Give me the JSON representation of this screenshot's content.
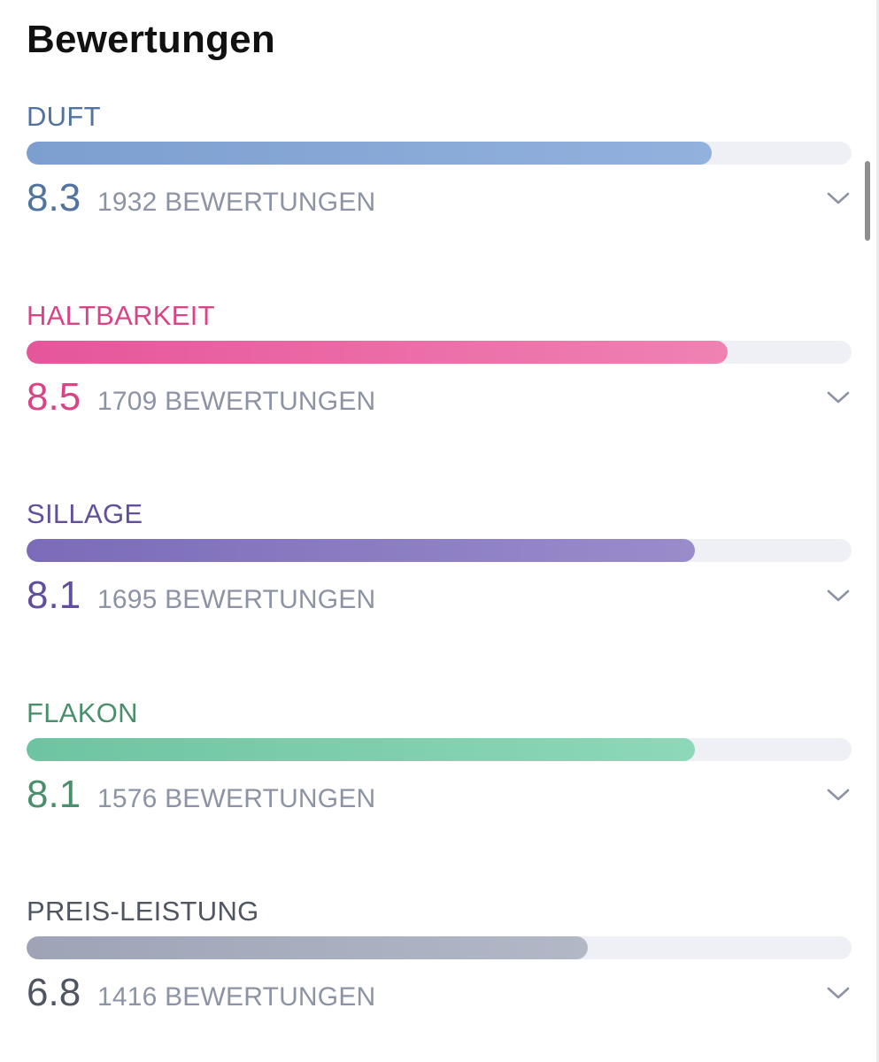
{
  "title": "Bewertungen",
  "ratings": [
    {
      "label": "DUFT",
      "score": "8.3",
      "value": 8.3,
      "count": "1932 BEWERTUNGEN",
      "color": "#50739f",
      "fill_from": "#7c9fd0",
      "fill_to": "#93b1dd",
      "icon": "chevron-down-icon"
    },
    {
      "label": "HALTBARKEIT",
      "score": "8.5",
      "value": 8.5,
      "count": "1709 BEWERTUNGEN",
      "color": "#d94487",
      "fill_from": "#e6559a",
      "fill_to": "#ef82b3",
      "icon": "chevron-down-icon"
    },
    {
      "label": "SILLAGE",
      "score": "8.1",
      "value": 8.1,
      "count": "1695 BEWERTUNGEN",
      "color": "#614f9b",
      "fill_from": "#7b6bb9",
      "fill_to": "#9a8ccb",
      "icon": "chevron-down-icon"
    },
    {
      "label": "FLAKON",
      "score": "8.1",
      "value": 8.1,
      "count": "1576 BEWERTUNGEN",
      "color": "#4a8f6c",
      "fill_from": "#6ec4a2",
      "fill_to": "#8dd8b8",
      "icon": "chevron-down-icon"
    },
    {
      "label": "PREIS-LEISTUNG",
      "score": "6.8",
      "value": 6.8,
      "count": "1416 BEWERTUNGEN",
      "color": "#4f5561",
      "fill_from": "#9ea4b6",
      "fill_to": "#b3b8c7",
      "icon": "chevron-down-icon"
    }
  ],
  "scale_max": 10
}
